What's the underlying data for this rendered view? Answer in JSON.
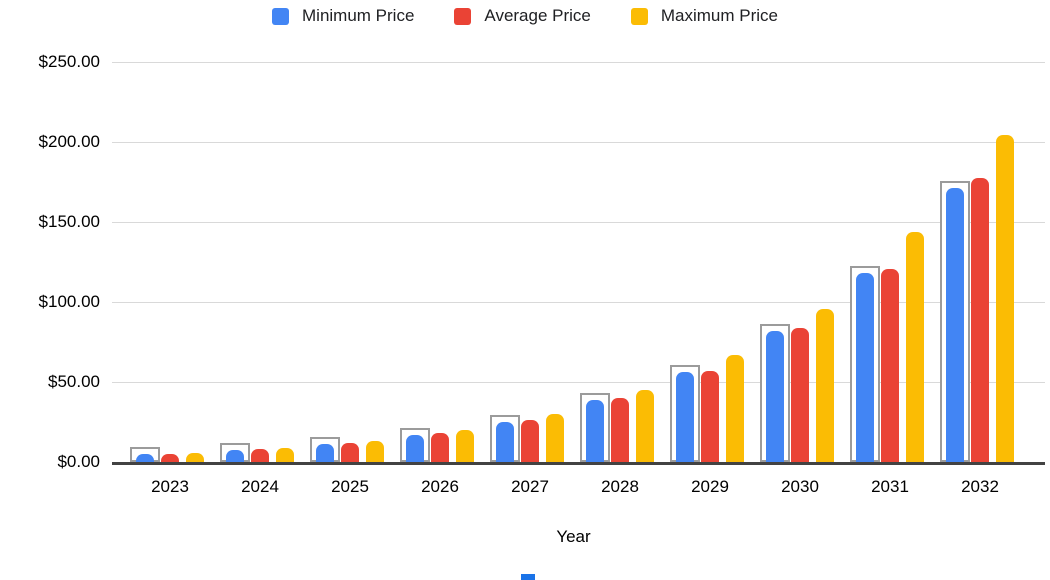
{
  "legend": [
    {
      "label": "Minimum Price",
      "color": "#4285F4"
    },
    {
      "label": "Average Price",
      "color": "#EA4335"
    },
    {
      "label": "Maximum Price",
      "color": "#FBBC04"
    }
  ],
  "axis": {
    "x_title": "Year",
    "y_ticks": [
      "$250.00",
      "$200.00",
      "$150.00",
      "$100.00",
      "$50.00",
      "$0.00"
    ]
  },
  "chart_data": {
    "type": "bar",
    "title": "",
    "categories": [
      "2023",
      "2024",
      "2025",
      "2026",
      "2027",
      "2028",
      "2029",
      "2030",
      "2031",
      "2032"
    ],
    "series": [
      {
        "name": "Minimum Price",
        "color": "#4285F4",
        "values": [
          4.8,
          7.6,
          11,
          17,
          25,
          39,
          56,
          82,
          118,
          171
        ]
      },
      {
        "name": "Average Price",
        "color": "#EA4335",
        "values": [
          5.1,
          8.0,
          12,
          18,
          26,
          40,
          57,
          83.5,
          120.5,
          177.5
        ]
      },
      {
        "name": "Maximum Price",
        "color": "#FBBC04",
        "values": [
          5.4,
          8.6,
          13,
          20,
          30,
          45,
          67,
          95.5,
          143.5,
          204.5
        ]
      }
    ],
    "xlabel": "Year",
    "ylabel": "",
    "ylim": [
      0,
      250
    ],
    "grid": true,
    "legend_position": "top",
    "selected_series": "Minimum Price"
  },
  "colors": {
    "gridline": "#d9d9d9",
    "axis_line": "#424242",
    "selection_outline": "#9b9b9b",
    "text": "#202124",
    "partial_blue_element": "#1a73e8"
  }
}
